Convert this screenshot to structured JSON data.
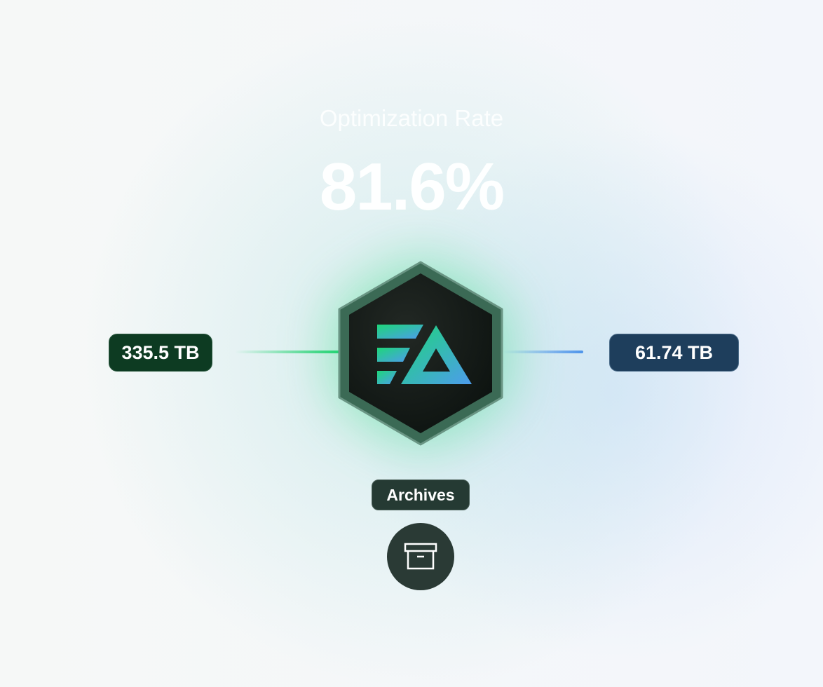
{
  "metric": {
    "title": "Optimization Rate",
    "value": "81.6%"
  },
  "source": {
    "value": "335.5 TB",
    "color": "#0d3b22"
  },
  "result": {
    "value": "61.74 TB",
    "color": "#1e3e5c"
  },
  "hub": {
    "logo": "app-logo",
    "accent_start": "#1ed67a",
    "accent_end": "#4d9cec"
  },
  "destination": {
    "label": "Archives",
    "icon": "archive-box-icon"
  }
}
